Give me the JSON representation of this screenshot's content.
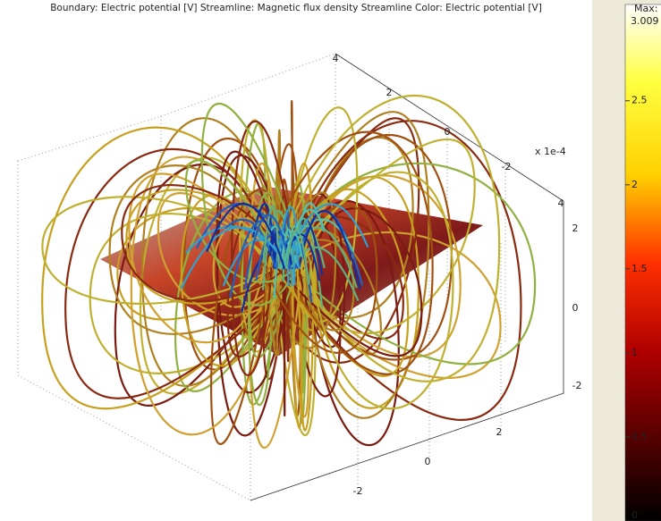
{
  "header": {
    "title": "Boundary: Electric potential [V]   Streamline: Magnetic flux density   Streamline Color: Electric potential [V]"
  },
  "axes": {
    "multiplier": "x 1e-4",
    "back_ticks": [
      "4",
      "2",
      "0",
      "-2",
      "4"
    ],
    "right_ticks": [
      "2",
      "0",
      "-2"
    ],
    "bottom_ticks": [
      "2",
      "0",
      "-2"
    ]
  },
  "colorbar": {
    "max_label": "Max:",
    "max_value": "3.009",
    "range": [
      0,
      3.009
    ],
    "ticks": [
      2.5,
      2,
      1.5,
      1,
      0.5,
      0
    ]
  }
}
